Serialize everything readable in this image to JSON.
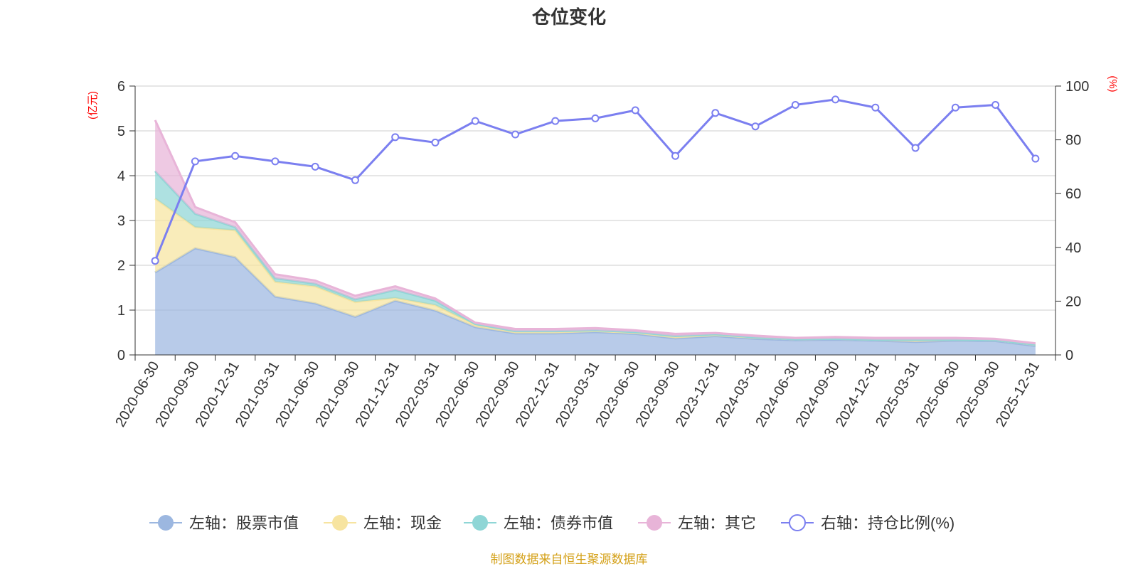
{
  "chart_data": {
    "type": "area+line",
    "title": "仓位变化",
    "left_axis_unit": "(亿元)",
    "right_axis_unit": "(%)",
    "left_ylim": [
      0,
      6
    ],
    "left_ticks": [
      "0",
      "1",
      "2",
      "3",
      "4",
      "5",
      "6"
    ],
    "right_ylim": [
      0,
      100
    ],
    "right_ticks": [
      "0",
      "20",
      "40",
      "60",
      "80",
      "100"
    ],
    "categories": [
      "2020-06-30",
      "2020-09-30",
      "2020-12-31",
      "2021-03-31",
      "2021-06-30",
      "2021-09-30",
      "2021-12-31",
      "2022-03-31",
      "2022-06-30",
      "2022-09-30",
      "2022-12-31",
      "2023-03-31",
      "2023-06-30",
      "2023-09-30",
      "2023-12-31",
      "2024-03-31",
      "2024-06-30",
      "2024-09-30",
      "2024-12-31",
      "2025-03-31",
      "2025-06-30",
      "2025-09-30",
      "2025-12-31"
    ],
    "stacked_series": [
      {
        "name": "左轴：股票市值",
        "axis": "left",
        "color": "#9cb7e0",
        "values": [
          1.84,
          2.38,
          2.18,
          1.3,
          1.15,
          0.85,
          1.21,
          0.99,
          0.62,
          0.48,
          0.48,
          0.51,
          0.47,
          0.37,
          0.42,
          0.36,
          0.33,
          0.34,
          0.32,
          0.29,
          0.32,
          0.31,
          0.2
        ]
      },
      {
        "name": "左轴：现金",
        "axis": "left",
        "color": "#f7e4a0",
        "values": [
          1.65,
          0.47,
          0.6,
          0.33,
          0.38,
          0.33,
          0.06,
          0.12,
          0.05,
          0.04,
          0.04,
          0.03,
          0.03,
          0.04,
          0.03,
          0.03,
          0.02,
          0.02,
          0.02,
          0.05,
          0.02,
          0.02,
          0.03
        ]
      },
      {
        "name": "左轴：债券市值",
        "axis": "left",
        "color": "#8fd6d6",
        "values": [
          0.61,
          0.3,
          0.07,
          0.08,
          0.06,
          0.06,
          0.18,
          0.1,
          0.02,
          0.01,
          0.01,
          0.01,
          0.01,
          0.01,
          0.01,
          0.0,
          0.0,
          0.0,
          0.0,
          0.0,
          0.0,
          0.0,
          0.0
        ]
      },
      {
        "name": "左轴：其它",
        "axis": "left",
        "color": "#e8b4d8",
        "values": [
          1.14,
          0.15,
          0.11,
          0.09,
          0.07,
          0.08,
          0.08,
          0.05,
          0.03,
          0.05,
          0.05,
          0.05,
          0.04,
          0.05,
          0.03,
          0.04,
          0.03,
          0.04,
          0.04,
          0.04,
          0.04,
          0.03,
          0.03
        ]
      }
    ],
    "line_series": {
      "name": "右轴：持仓比例(%)",
      "axis": "right",
      "color": "#7b7ff0",
      "values": [
        35,
        72,
        74,
        72,
        70,
        65,
        81,
        79,
        87,
        82,
        87,
        88,
        91,
        74,
        90,
        85,
        93,
        95,
        92,
        77,
        92,
        93,
        73
      ]
    },
    "legend_position": "bottom",
    "grid": true
  },
  "source_note": "制图数据来自恒生聚源数据库"
}
